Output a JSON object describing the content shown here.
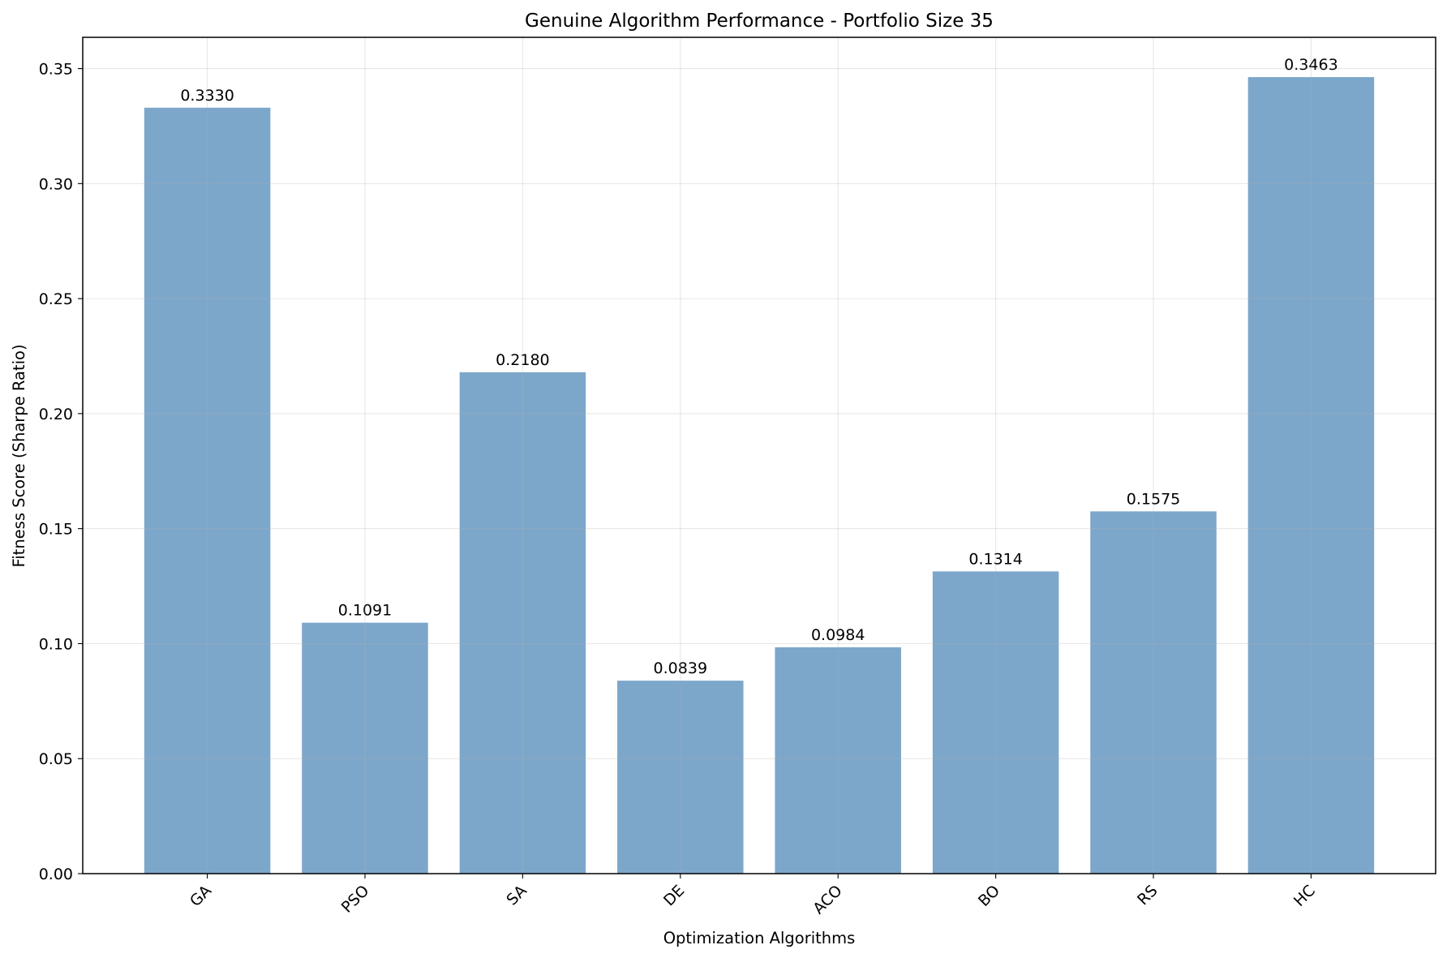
{
  "chart_data": {
    "type": "bar",
    "title": "Genuine Algorithm Performance - Portfolio Size 35",
    "xlabel": "Optimization Algorithms",
    "ylabel": "Fitness Score (Sharpe Ratio)",
    "categories": [
      "GA",
      "PSO",
      "SA",
      "DE",
      "ACO",
      "BO",
      "RS",
      "HC"
    ],
    "values": [
      0.333,
      0.1091,
      0.218,
      0.0839,
      0.0984,
      0.1314,
      0.1575,
      0.3463
    ],
    "value_labels": [
      "0.3330",
      "0.1091",
      "0.2180",
      "0.0839",
      "0.0984",
      "0.1314",
      "0.1575",
      "0.3463"
    ],
    "ylim": [
      0,
      0.3636
    ],
    "yticks": [
      0.0,
      0.05,
      0.1,
      0.15,
      0.2,
      0.25,
      0.3,
      0.35
    ],
    "ytick_labels": [
      "0.00",
      "0.05",
      "0.10",
      "0.15",
      "0.20",
      "0.25",
      "0.30",
      "0.35"
    ],
    "grid": true,
    "bar_color": "#4682b4",
    "xtick_rotation_deg": 45
  }
}
